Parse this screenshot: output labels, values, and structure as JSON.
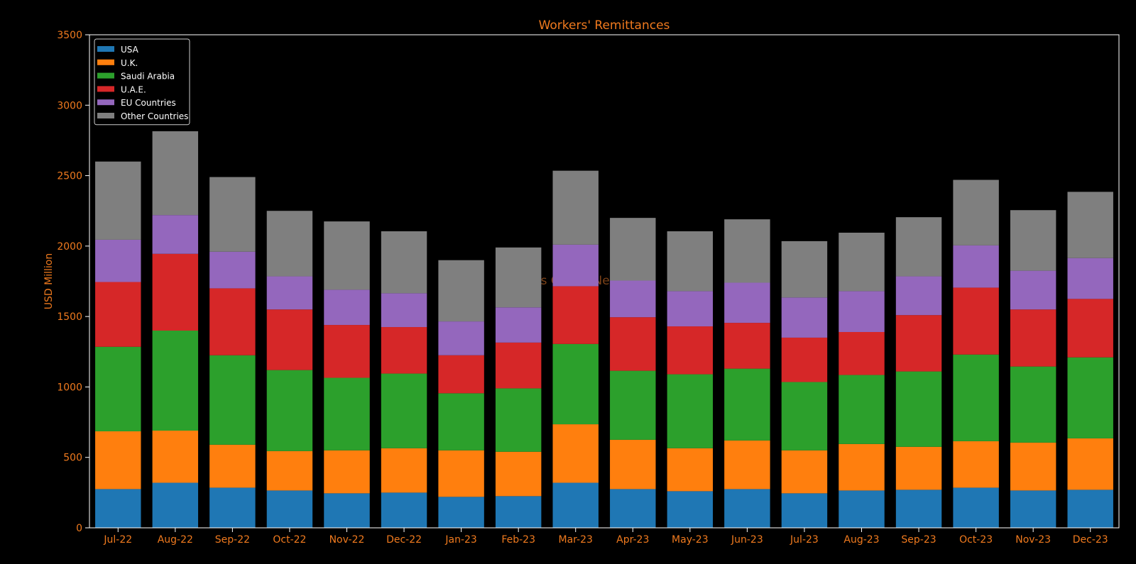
{
  "chart_data": {
    "type": "bar",
    "stacked": true,
    "title": "Workers' Remittances",
    "xlabel": "",
    "ylabel": "USD Million",
    "ylim": [
      0,
      3500
    ],
    "yticks": [
      0,
      500,
      1000,
      1500,
      2000,
      2500,
      3000,
      3500
    ],
    "grid": false,
    "legend_position": "top-left",
    "watermark": "Mettis Global News",
    "categories": [
      "Jul-22",
      "Aug-22",
      "Sep-22",
      "Oct-22",
      "Nov-22",
      "Dec-22",
      "Jan-23",
      "Feb-23",
      "Mar-23",
      "Apr-23",
      "May-23",
      "Jun-23",
      "Jul-23",
      "Aug-23",
      "Sep-23",
      "Oct-23",
      "Nov-23",
      "Dec-23"
    ],
    "series": [
      {
        "name": "USA",
        "color": "#1f77b4",
        "values": [
          275,
          320,
          285,
          265,
          245,
          250,
          220,
          225,
          320,
          275,
          260,
          275,
          245,
          265,
          270,
          285,
          265,
          270
        ]
      },
      {
        "name": "U.K.",
        "color": "#ff7f0e",
        "values": [
          410,
          370,
          305,
          280,
          305,
          315,
          330,
          315,
          415,
          350,
          305,
          345,
          305,
          330,
          305,
          330,
          340,
          365
        ]
      },
      {
        "name": "Saudi Arabia",
        "color": "#2ca02c",
        "values": [
          600,
          710,
          635,
          575,
          515,
          530,
          405,
          450,
          570,
          490,
          525,
          510,
          485,
          490,
          535,
          615,
          540,
          575
        ]
      },
      {
        "name": "U.A.E.",
        "color": "#d62728",
        "values": [
          460,
          545,
          475,
          430,
          375,
          330,
          270,
          325,
          410,
          380,
          340,
          325,
          315,
          305,
          400,
          475,
          405,
          415
        ]
      },
      {
        "name": "EU Countries",
        "color": "#9467bd",
        "values": [
          300,
          275,
          260,
          235,
          250,
          240,
          240,
          250,
          295,
          260,
          250,
          285,
          285,
          290,
          275,
          300,
          275,
          290
        ]
      },
      {
        "name": "Other Countries",
        "color": "#7f7f7f",
        "values": [
          555,
          595,
          530,
          465,
          485,
          440,
          435,
          425,
          525,
          445,
          425,
          450,
          400,
          415,
          420,
          465,
          430,
          470
        ]
      }
    ]
  }
}
